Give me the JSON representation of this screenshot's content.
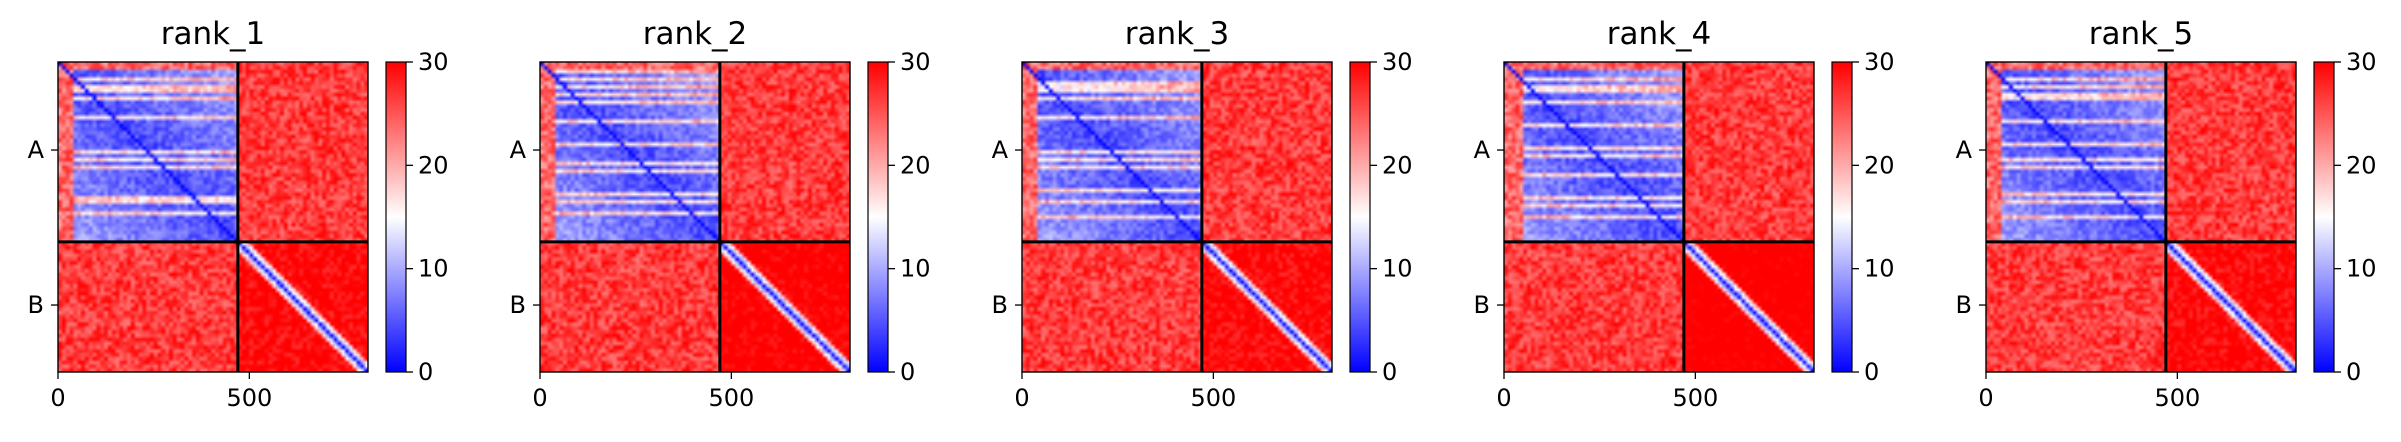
{
  "chart_data": {
    "type": "heatmap",
    "colormap": {
      "name": "bwr",
      "low": "#0000ff",
      "mid": "#ffffff",
      "high": "#ff0000",
      "vmin": 0,
      "vmax": 30
    },
    "colorbar_ticks": [
      "0",
      "10",
      "20",
      "30"
    ],
    "x_ticks": [
      {
        "value": 0,
        "label": "0"
      },
      {
        "value": 500,
        "label": "500"
      }
    ],
    "y_ticks": [
      {
        "value": 230,
        "label": "A"
      },
      {
        "value": 635,
        "label": "B"
      }
    ],
    "range": [
      0,
      810
    ],
    "chain_boundary": 470,
    "grid": false,
    "panels": [
      {
        "title": "rank_1",
        "gaps": [
          12,
          40,
          58,
          70,
          86,
          142,
          228,
          248,
          268,
          348,
          360,
          394
        ],
        "low_col": 32,
        "intra_b": 11
      },
      {
        "title": "rank_2",
        "gaps": [
          22,
          44,
          64,
          80,
          104,
          152,
          214,
          262,
          280,
          342,
          362,
          390
        ],
        "low_col": 34,
        "intra_b": 12
      },
      {
        "title": "rank_3",
        "gaps": [
          14,
          46,
          60,
          70,
          90,
          140,
          234,
          252,
          272,
          334,
          356,
          398
        ],
        "low_col": 30,
        "intra_b": 11
      },
      {
        "title": "rank_4",
        "gaps": [
          10,
          36,
          62,
          74,
          96,
          158,
          218,
          244,
          292,
          348,
          368,
          404
        ],
        "low_col": 35,
        "intra_b": 13
      },
      {
        "title": "rank_5",
        "gaps": [
          12,
          42,
          58,
          76,
          92,
          150,
          210,
          248,
          272,
          340,
          358,
          396
        ],
        "low_col": 33,
        "intra_b": 11
      }
    ]
  }
}
